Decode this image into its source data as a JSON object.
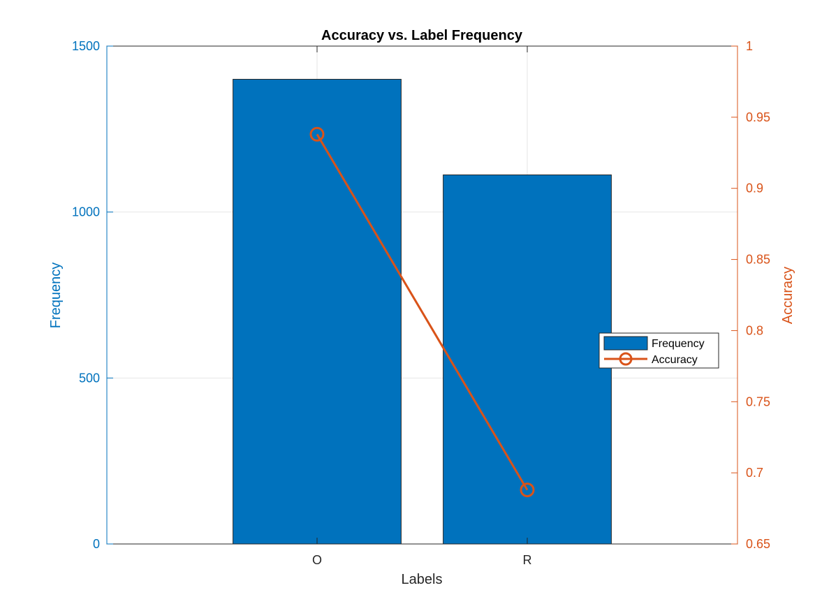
{
  "chart_data": {
    "type": "bar",
    "title": "Accuracy vs. Label Frequency",
    "xlabel": "Labels",
    "ylabel_left": "Frequency",
    "ylabel_right": "Accuracy",
    "categories": [
      "O",
      "R"
    ],
    "series": [
      {
        "name": "Frequency",
        "type": "bar",
        "axis": "left",
        "values": [
          1400,
          1112
        ],
        "color": "#0072BD"
      },
      {
        "name": "Accuracy",
        "type": "line",
        "axis": "right",
        "marker": "circle",
        "values": [
          0.938,
          0.688
        ],
        "color": "#D95319"
      }
    ],
    "ylim_left": [
      0,
      1500
    ],
    "ylim_right": [
      0.65,
      1
    ],
    "yticks_left": [
      "0",
      "500",
      "1000",
      "1500"
    ],
    "yticks_right": [
      "0.65",
      "0.7",
      "0.75",
      "0.8",
      "0.85",
      "0.9",
      "0.95",
      "1"
    ],
    "grid": true,
    "legend_position": "right"
  }
}
